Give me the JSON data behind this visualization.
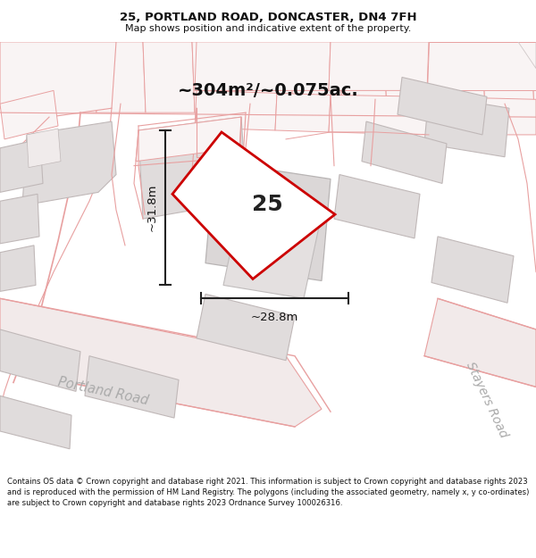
{
  "title": "25, PORTLAND ROAD, DONCASTER, DN4 7FH",
  "subtitle": "Map shows position and indicative extent of the property.",
  "footer": "Contains OS data © Crown copyright and database right 2021. This information is subject to Crown copyright and database rights 2023 and is reproduced with the permission of HM Land Registry. The polygons (including the associated geometry, namely x, y co-ordinates) are subject to Crown copyright and database rights 2023 Ordnance Survey 100026316.",
  "area_label": "~304m²/~0.075ac.",
  "property_number": "25",
  "dim_width": "~28.8m",
  "dim_height": "~31.8m",
  "road_label_left": "Portland Road",
  "road_label_right": "Stayers Road",
  "bg_color": "#ffffff",
  "property_fill": "#ffffff",
  "property_edge": "#cc0000",
  "building_fill": "#e0dcdc",
  "building_edge": "#c0b8b8",
  "road_line_color": "#e8a0a0",
  "pink_fill": "#f9f4f4"
}
